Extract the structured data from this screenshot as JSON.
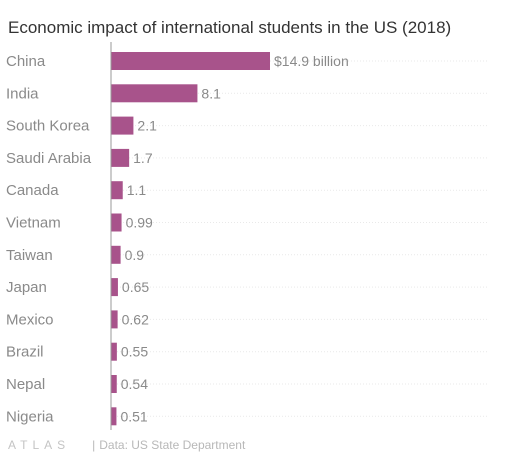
{
  "chart_data": {
    "type": "bar",
    "orientation": "horizontal",
    "title": "Economic impact of international students in the US (2018)",
    "categories": [
      "China",
      "India",
      "South Korea",
      "Saudi Arabia",
      "Canada",
      "Vietnam",
      "Taiwan",
      "Japan",
      "Mexico",
      "Brazil",
      "Nepal",
      "Nigeria"
    ],
    "values": [
      14.9,
      8.1,
      2.1,
      1.7,
      1.1,
      0.99,
      0.9,
      0.65,
      0.62,
      0.55,
      0.54,
      0.51
    ],
    "value_labels": [
      "$14.9 billion",
      "8.1",
      "2.1",
      "1.7",
      "1.1",
      "0.99",
      "0.9",
      "0.65",
      "0.62",
      "0.55",
      "0.54",
      "0.51"
    ],
    "xlim": [
      0,
      14.9
    ],
    "bar_color": "#a8538b",
    "grid": true
  },
  "footer": {
    "logo": "ATLAS",
    "source": "Data: US State Department"
  }
}
